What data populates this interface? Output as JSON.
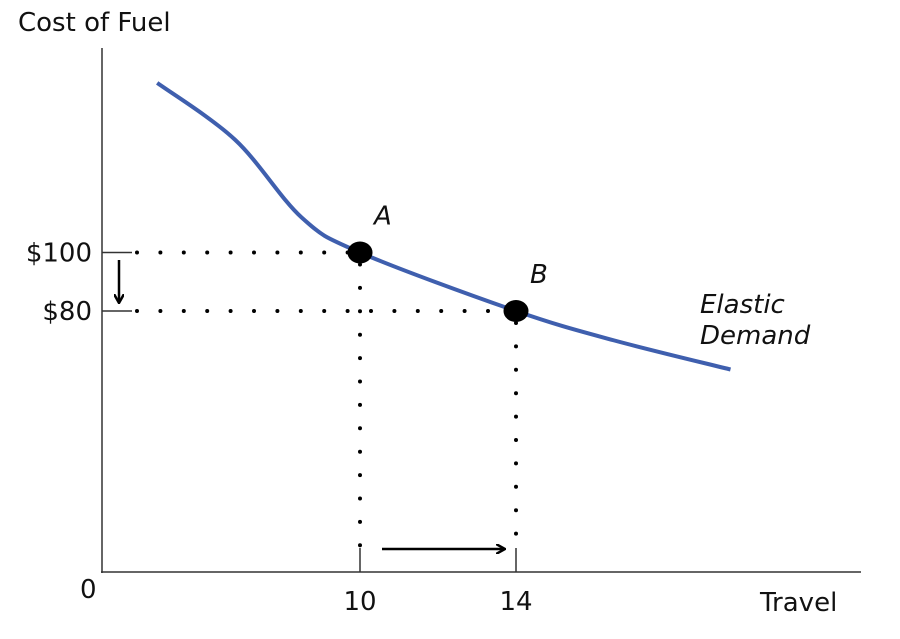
{
  "chart_data": {
    "type": "line",
    "ylabel": "Cost of Fuel",
    "xlabel": "Travel",
    "origin_label": "0",
    "x_ticks": [
      {
        "value": 10,
        "label": "10"
      },
      {
        "value": 14,
        "label": "14"
      }
    ],
    "y_ticks": [
      {
        "value": 100,
        "label": "$100"
      },
      {
        "value": 80,
        "label": "$80"
      }
    ],
    "series": [
      {
        "name": "Elastic Demand",
        "label_lines": [
          "Elastic",
          "Demand"
        ],
        "color": "#3f5fae",
        "points": [
          [
            4.8,
            158
          ],
          [
            6.8,
            138.5
          ],
          [
            8.5,
            112
          ],
          [
            10,
            100
          ],
          [
            14,
            80
          ],
          [
            16.5,
            70
          ],
          [
            19.5,
            60
          ]
        ]
      }
    ],
    "marked_points": [
      {
        "label": "A",
        "x": 10,
        "y": 100
      },
      {
        "label": "B",
        "x": 14,
        "y": 80
      }
    ],
    "annotations": [
      "price decrease arrow (down, $100 to $80)",
      "travel increase arrow (right, 10 to 14)"
    ],
    "grid": false,
    "legend": "none"
  }
}
